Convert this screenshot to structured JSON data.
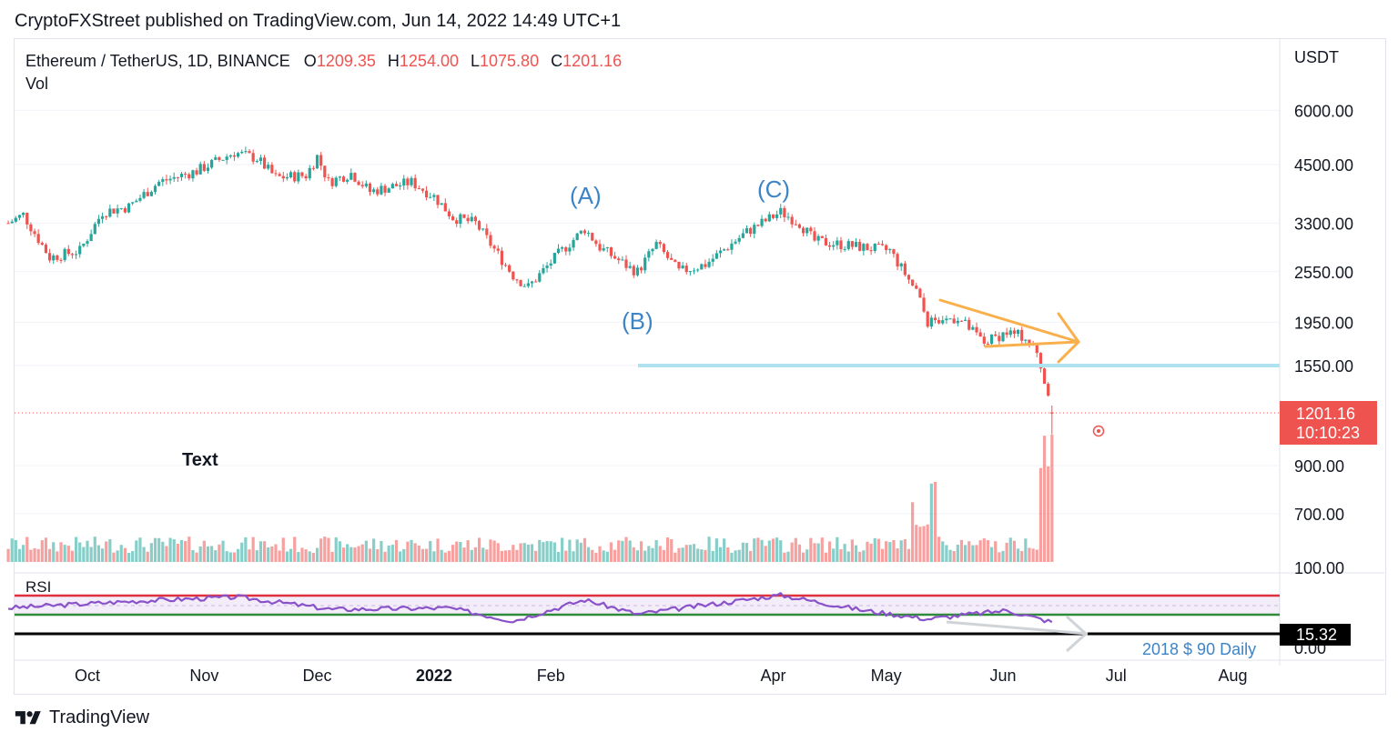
{
  "header": {
    "published_line": "CryptoFXStreet published on TradingView.com, Jun 14, 2022 14:49 UTC+1"
  },
  "legend": {
    "symbol": "Ethereum / TetherUS, 1D, BINANCE",
    "open_label": "O",
    "open_value": "1209.35",
    "high_label": "H",
    "high_value": "1254.00",
    "low_label": "L",
    "low_value": "1075.80",
    "close_label": "C",
    "close_value": "1201.16",
    "volume_label": "Vol"
  },
  "price_axis": {
    "unit": "USDT",
    "ticks": [
      "6000.00",
      "4500.00",
      "3300.00",
      "2550.00",
      "1950.00",
      "1550.00",
      "900.00",
      "700.00",
      "100.00",
      "0.00"
    ]
  },
  "last_price_badge": {
    "price": "1201.16",
    "countdown": "10:10:23"
  },
  "time_axis": {
    "ticks": [
      "Oct",
      "Nov",
      "Dec",
      "2022",
      "Feb",
      "Apr",
      "May",
      "Jun",
      "Jul",
      "Aug"
    ]
  },
  "annotations": {
    "wave_a": "(A)",
    "wave_b": "(B)",
    "wave_c": "(C)",
    "text_note": "Text",
    "bottom_note": "2018 $ 90 Daily"
  },
  "rsi": {
    "label": "RSI",
    "value": "15.32"
  },
  "footer": {
    "brand": "TradingView"
  },
  "colors": {
    "up": "#26a69a",
    "down": "#ef5350",
    "accent_blue": "#2962ff",
    "wave_label": "#3d84c6",
    "support_line": "#aee2ef",
    "wedge": "#f9b04c",
    "rsi_line": "#8a52c9",
    "rsi_upper": "#e0303c",
    "rsi_lower": "#2e8b3a"
  },
  "chart_data": {
    "type": "candlestick",
    "symbol": "ETH/USDT",
    "interval": "1D",
    "y_scale": "log",
    "close_path": [
      {
        "date": "2021-09-10",
        "close": 3300
      },
      {
        "date": "2021-09-14",
        "close": 3450
      },
      {
        "date": "2021-09-21",
        "close": 2750
      },
      {
        "date": "2021-09-29",
        "close": 2850
      },
      {
        "date": "2021-10-05",
        "close": 3500
      },
      {
        "date": "2021-10-12",
        "close": 3600
      },
      {
        "date": "2021-10-20",
        "close": 4100
      },
      {
        "date": "2021-10-30",
        "close": 4350
      },
      {
        "date": "2021-11-09",
        "close": 4800
      },
      {
        "date": "2021-11-15",
        "close": 4650
      },
      {
        "date": "2021-11-20",
        "close": 4200
      },
      {
        "date": "2021-11-28",
        "close": 4250
      },
      {
        "date": "2021-12-01",
        "close": 4700
      },
      {
        "date": "2021-12-04",
        "close": 4100
      },
      {
        "date": "2021-12-10",
        "close": 4300
      },
      {
        "date": "2021-12-15",
        "close": 3900
      },
      {
        "date": "2021-12-26",
        "close": 4100
      },
      {
        "date": "2022-01-01",
        "close": 3800
      },
      {
        "date": "2022-01-06",
        "close": 3400
      },
      {
        "date": "2022-01-12",
        "close": 3300
      },
      {
        "date": "2022-01-22",
        "close": 2500
      },
      {
        "date": "2022-01-26",
        "close": 2350
      },
      {
        "date": "2022-02-03",
        "close": 2800
      },
      {
        "date": "2022-02-10",
        "close": 3200
      },
      {
        "date": "2022-02-14",
        "close": 2900
      },
      {
        "date": "2022-02-22",
        "close": 2600
      },
      {
        "date": "2022-02-24",
        "close": 2550
      },
      {
        "date": "2022-03-01",
        "close": 2950
      },
      {
        "date": "2022-03-07",
        "close": 2550
      },
      {
        "date": "2022-03-14",
        "close": 2650
      },
      {
        "date": "2022-03-25",
        "close": 3150
      },
      {
        "date": "2022-04-03",
        "close": 3500
      },
      {
        "date": "2022-04-08",
        "close": 3300
      },
      {
        "date": "2022-04-12",
        "close": 3000
      },
      {
        "date": "2022-04-25",
        "close": 2900
      },
      {
        "date": "2022-05-02",
        "close": 2850
      },
      {
        "date": "2022-05-09",
        "close": 2300
      },
      {
        "date": "2022-05-12",
        "close": 1950
      },
      {
        "date": "2022-05-20",
        "close": 2000
      },
      {
        "date": "2022-05-27",
        "close": 1750
      },
      {
        "date": "2022-06-02",
        "close": 1850
      },
      {
        "date": "2022-06-07",
        "close": 1800
      },
      {
        "date": "2022-06-10",
        "close": 1650
      },
      {
        "date": "2022-06-12",
        "close": 1450
      },
      {
        "date": "2022-06-14",
        "close": 1201.16
      }
    ],
    "volume_profile_note": "volume bars, green on up days, red on down days, largest spike on Jun 13-14",
    "support_level": 1550,
    "wave_labels": [
      {
        "label": "(A)",
        "date": "2022-02-10"
      },
      {
        "label": "(B)",
        "date": "2022-02-24"
      },
      {
        "label": "(C)",
        "date": "2022-04-03"
      }
    ],
    "rsi": {
      "upper_band": 70,
      "lower_band": 30,
      "current": 15.32,
      "path": [
        {
          "date": "2021-09-10",
          "value": 45
        },
        {
          "date": "2021-10-15",
          "value": 60
        },
        {
          "date": "2021-11-10",
          "value": 68
        },
        {
          "date": "2021-12-05",
          "value": 42
        },
        {
          "date": "2022-01-05",
          "value": 45
        },
        {
          "date": "2022-01-22",
          "value": 18
        },
        {
          "date": "2022-02-10",
          "value": 62
        },
        {
          "date": "2022-02-24",
          "value": 32
        },
        {
          "date": "2022-04-03",
          "value": 72
        },
        {
          "date": "2022-04-25",
          "value": 40
        },
        {
          "date": "2022-05-12",
          "value": 22
        },
        {
          "date": "2022-06-02",
          "value": 40
        },
        {
          "date": "2022-06-14",
          "value": 15.32
        }
      ]
    }
  }
}
